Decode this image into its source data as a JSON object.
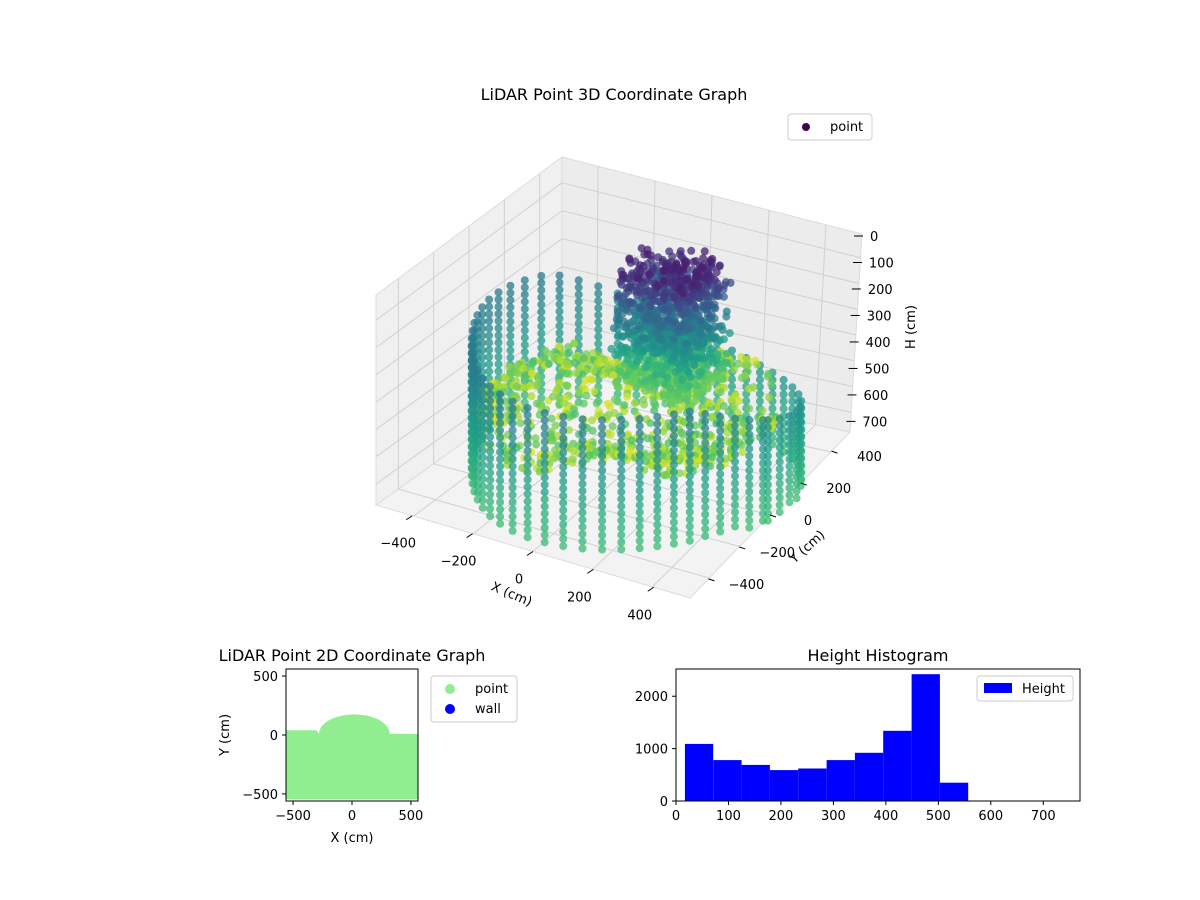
{
  "chart_data": [
    {
      "type": "scatter3d",
      "title": "LiDAR Point 3D Coordinate Graph",
      "xlabel": "X (cm)",
      "ylabel": "Y (cm)",
      "zlabel": "H (cm)",
      "x_ticks": [
        "−400",
        "−200",
        "0",
        "200",
        "400"
      ],
      "y_ticks": [
        "−400",
        "−200",
        "0",
        "200",
        "400"
      ],
      "z_ticks": [
        "0",
        "100",
        "200",
        "300",
        "400",
        "500",
        "600",
        "700"
      ],
      "xlim": [
        -520,
        520
      ],
      "ylim": [
        -520,
        520
      ],
      "zlim": [
        760,
        0
      ],
      "colormap": "viridis",
      "legend": [
        {
          "label": "point",
          "color": "#440154"
        }
      ],
      "legend_position": "top-right"
    },
    {
      "type": "scatter",
      "title": "LiDAR Point 2D Coordinate Graph",
      "xlabel": "X (cm)",
      "ylabel": "Y (cm)",
      "x_ticks": [
        "−500",
        "0",
        "500"
      ],
      "y_ticks": [
        "500",
        "0",
        "−500"
      ],
      "xlim": [
        -560,
        560
      ],
      "ylim": [
        -560,
        560
      ],
      "series": [
        {
          "name": "point",
          "color": "#90ee90"
        },
        {
          "name": "wall",
          "color": "#0000ff"
        }
      ],
      "legend_position": "outside-right"
    },
    {
      "type": "bar",
      "title": "Height Histogram",
      "x_ticks": [
        "0",
        "100",
        "200",
        "300",
        "400",
        "500",
        "600",
        "700"
      ],
      "y_ticks": [
        "0",
        "1000",
        "2000"
      ],
      "xlim": [
        0,
        770
      ],
      "ylim": [
        0,
        2520
      ],
      "bin_edges": [
        17,
        71,
        125,
        179,
        233,
        287,
        341,
        395,
        449,
        503,
        557
      ],
      "values": [
        1090,
        780,
        690,
        590,
        620,
        780,
        920,
        1340,
        2420,
        350
      ],
      "series": [
        {
          "name": "Height",
          "color": "#0000ff"
        }
      ],
      "legend_position": "top-right"
    }
  ]
}
